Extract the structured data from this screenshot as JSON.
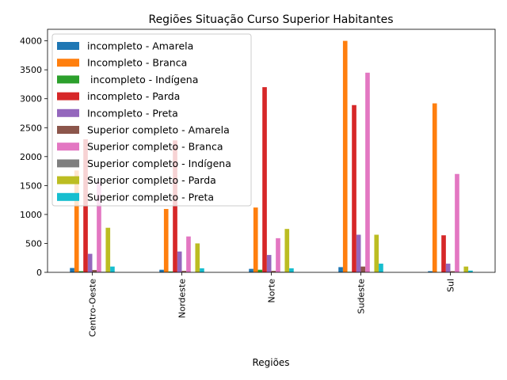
{
  "chart_data": {
    "type": "bar",
    "title": "Regiões Situação Curso Superior Habitantes",
    "xlabel": "Regiões",
    "ylabel": "",
    "ylim": [
      0,
      4200
    ],
    "yticks": [
      0,
      500,
      1000,
      1500,
      2000,
      2500,
      3000,
      3500,
      4000
    ],
    "grid": false,
    "legend_position": "upper-left",
    "categories": [
      "Centro-Oeste",
      "Nordeste",
      "Norte",
      "Sudeste",
      "Sul"
    ],
    "series": [
      {
        "name": "incompleto - Amarela",
        "color": "#1f77b4",
        "values": [
          75,
          45,
          60,
          90,
          20
        ]
      },
      {
        "name": "Incompleto - Branca",
        "color": "#ff7f0e",
        "values": [
          1760,
          1095,
          1120,
          4000,
          2920
        ]
      },
      {
        "name": " incompleto - Indígena",
        "color": "#2ca02c",
        "values": [
          20,
          15,
          45,
          10,
          5
        ]
      },
      {
        "name": "incompleto - Parda",
        "color": "#d62728",
        "values": [
          2300,
          2280,
          3200,
          2890,
          640
        ]
      },
      {
        "name": "Incompleto - Preta",
        "color": "#9467bd",
        "values": [
          320,
          360,
          300,
          650,
          150
        ]
      },
      {
        "name": "Superior completo - Amarela",
        "color": "#8c564b",
        "values": [
          40,
          25,
          25,
          100,
          20
        ]
      },
      {
        "name": "Superior completo - Branca",
        "color": "#e377c2",
        "values": [
          1560,
          620,
          590,
          3450,
          1700
        ]
      },
      {
        "name": "Superior completo - Indígena",
        "color": "#7f7f7f",
        "values": [
          10,
          5,
          10,
          5,
          5
        ]
      },
      {
        "name": "Superior completo - Parda",
        "color": "#bcbd22",
        "values": [
          770,
          500,
          750,
          650,
          100
        ]
      },
      {
        "name": "Superior completo - Preta",
        "color": "#17becf",
        "values": [
          100,
          70,
          70,
          150,
          30
        ]
      }
    ]
  }
}
